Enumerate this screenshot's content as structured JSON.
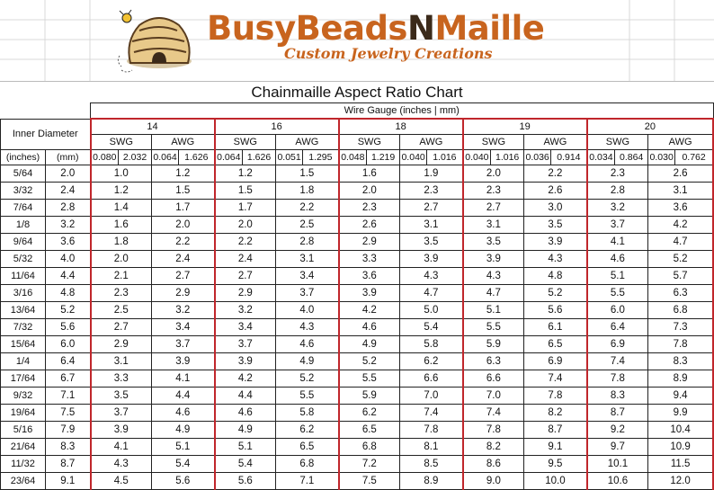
{
  "brand": {
    "name_part1": "BusyBeads",
    "name_part2": "N",
    "name_part3": "Maille",
    "tagline": "Custom Jewelry Creations"
  },
  "title": "Chainmaille Aspect Ratio Chart",
  "wire_gauge_header": "Wire Gauge (inches | mm)",
  "inner_diameter_header": "Inner Diameter",
  "unit_headers": [
    "(inches)",
    "(mm)"
  ],
  "gauges": [
    {
      "gauge": "14",
      "swg": [
        "0.080",
        "2.032"
      ],
      "awg": [
        "0.064",
        "1.626"
      ]
    },
    {
      "gauge": "16",
      "swg": [
        "0.064",
        "1.626"
      ],
      "awg": [
        "0.051",
        "1.295"
      ]
    },
    {
      "gauge": "18",
      "swg": [
        "0.048",
        "1.219"
      ],
      "awg": [
        "0.040",
        "1.016"
      ]
    },
    {
      "gauge": "19",
      "swg": [
        "0.040",
        "1.016"
      ],
      "awg": [
        "0.036",
        "0.914"
      ]
    },
    {
      "gauge": "20",
      "swg": [
        "0.034",
        "0.864"
      ],
      "awg": [
        "0.030",
        "0.762"
      ]
    }
  ],
  "swg_label": "SWG",
  "awg_label": "AWG",
  "rows": [
    [
      "5/64",
      "2.0",
      "1.0",
      "1.2",
      "1.2",
      "1.5",
      "1.6",
      "1.9",
      "2.0",
      "2.2",
      "2.3",
      "2.6"
    ],
    [
      "3/32",
      "2.4",
      "1.2",
      "1.5",
      "1.5",
      "1.8",
      "2.0",
      "2.3",
      "2.3",
      "2.6",
      "2.8",
      "3.1"
    ],
    [
      "7/64",
      "2.8",
      "1.4",
      "1.7",
      "1.7",
      "2.2",
      "2.3",
      "2.7",
      "2.7",
      "3.0",
      "3.2",
      "3.6"
    ],
    [
      "1/8",
      "3.2",
      "1.6",
      "2.0",
      "2.0",
      "2.5",
      "2.6",
      "3.1",
      "3.1",
      "3.5",
      "3.7",
      "4.2"
    ],
    [
      "9/64",
      "3.6",
      "1.8",
      "2.2",
      "2.2",
      "2.8",
      "2.9",
      "3.5",
      "3.5",
      "3.9",
      "4.1",
      "4.7"
    ],
    [
      "5/32",
      "4.0",
      "2.0",
      "2.4",
      "2.4",
      "3.1",
      "3.3",
      "3.9",
      "3.9",
      "4.3",
      "4.6",
      "5.2"
    ],
    [
      "11/64",
      "4.4",
      "2.1",
      "2.7",
      "2.7",
      "3.4",
      "3.6",
      "4.3",
      "4.3",
      "4.8",
      "5.1",
      "5.7"
    ],
    [
      "3/16",
      "4.8",
      "2.3",
      "2.9",
      "2.9",
      "3.7",
      "3.9",
      "4.7",
      "4.7",
      "5.2",
      "5.5",
      "6.3"
    ],
    [
      "13/64",
      "5.2",
      "2.5",
      "3.2",
      "3.2",
      "4.0",
      "4.2",
      "5.0",
      "5.1",
      "5.6",
      "6.0",
      "6.8"
    ],
    [
      "7/32",
      "5.6",
      "2.7",
      "3.4",
      "3.4",
      "4.3",
      "4.6",
      "5.4",
      "5.5",
      "6.1",
      "6.4",
      "7.3"
    ],
    [
      "15/64",
      "6.0",
      "2.9",
      "3.7",
      "3.7",
      "4.6",
      "4.9",
      "5.8",
      "5.9",
      "6.5",
      "6.9",
      "7.8"
    ],
    [
      "1/4",
      "6.4",
      "3.1",
      "3.9",
      "3.9",
      "4.9",
      "5.2",
      "6.2",
      "6.3",
      "6.9",
      "7.4",
      "8.3"
    ],
    [
      "17/64",
      "6.7",
      "3.3",
      "4.1",
      "4.2",
      "5.2",
      "5.5",
      "6.6",
      "6.6",
      "7.4",
      "7.8",
      "8.9"
    ],
    [
      "9/32",
      "7.1",
      "3.5",
      "4.4",
      "4.4",
      "5.5",
      "5.9",
      "7.0",
      "7.0",
      "7.8",
      "8.3",
      "9.4"
    ],
    [
      "19/64",
      "7.5",
      "3.7",
      "4.6",
      "4.6",
      "5.8",
      "6.2",
      "7.4",
      "7.4",
      "8.2",
      "8.7",
      "9.9"
    ],
    [
      "5/16",
      "7.9",
      "3.9",
      "4.9",
      "4.9",
      "6.2",
      "6.5",
      "7.8",
      "7.8",
      "8.7",
      "9.2",
      "10.4"
    ],
    [
      "21/64",
      "8.3",
      "4.1",
      "5.1",
      "5.1",
      "6.5",
      "6.8",
      "8.1",
      "8.2",
      "9.1",
      "9.7",
      "10.9"
    ],
    [
      "11/32",
      "8.7",
      "4.3",
      "5.4",
      "5.4",
      "6.8",
      "7.2",
      "8.5",
      "8.6",
      "9.5",
      "10.1",
      "11.5"
    ],
    [
      "23/64",
      "9.1",
      "4.5",
      "5.6",
      "5.6",
      "7.1",
      "7.5",
      "8.9",
      "9.0",
      "10.0",
      "10.6",
      "12.0"
    ]
  ]
}
